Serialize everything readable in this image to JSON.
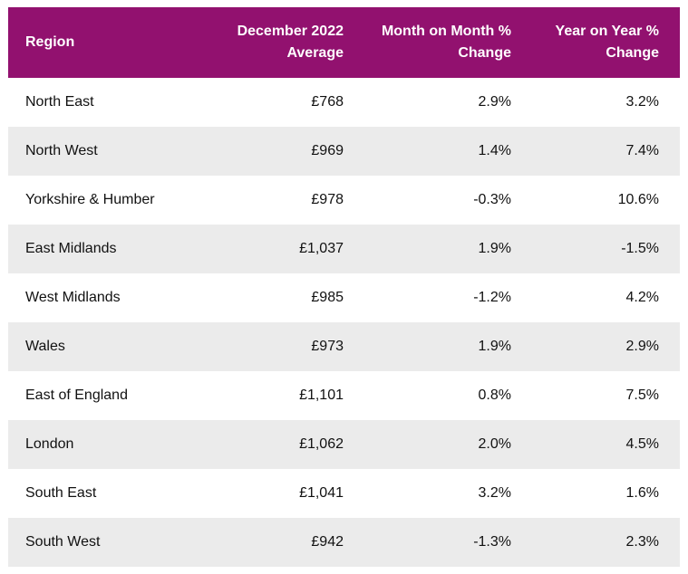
{
  "table": {
    "headers": {
      "region": "Region",
      "average": "December 2022\nAverage",
      "mom": "Month on Month %\nChange",
      "yoy": "Year on Year %\nChange"
    },
    "rows": [
      {
        "region": "North East",
        "average": "£768",
        "mom": "2.9%",
        "yoy": "3.2%"
      },
      {
        "region": "North West",
        "average": "£969",
        "mom": "1.4%",
        "yoy": "7.4%"
      },
      {
        "region": "Yorkshire & Humber",
        "average": "£978",
        "mom": "-0.3%",
        "yoy": "10.6%"
      },
      {
        "region": "East Midlands",
        "average": "£1,037",
        "mom": "1.9%",
        "yoy": "-1.5%"
      },
      {
        "region": "West Midlands",
        "average": "£985",
        "mom": "-1.2%",
        "yoy": "4.2%"
      },
      {
        "region": "Wales",
        "average": "£973",
        "mom": "1.9%",
        "yoy": "2.9%"
      },
      {
        "region": "East of England",
        "average": "£1,101",
        "mom": "0.8%",
        "yoy": "7.5%"
      },
      {
        "region": "London",
        "average": "£1,062",
        "mom": "2.0%",
        "yoy": "4.5%"
      },
      {
        "region": "South East",
        "average": "£1,041",
        "mom": "3.2%",
        "yoy": "1.6%"
      },
      {
        "region": "South West",
        "average": "£942",
        "mom": "-1.3%",
        "yoy": "2.3%"
      }
    ]
  },
  "colors": {
    "header_bg": "#92116f",
    "header_text": "#ffffff",
    "alt_row_bg": "#ebebeb"
  }
}
